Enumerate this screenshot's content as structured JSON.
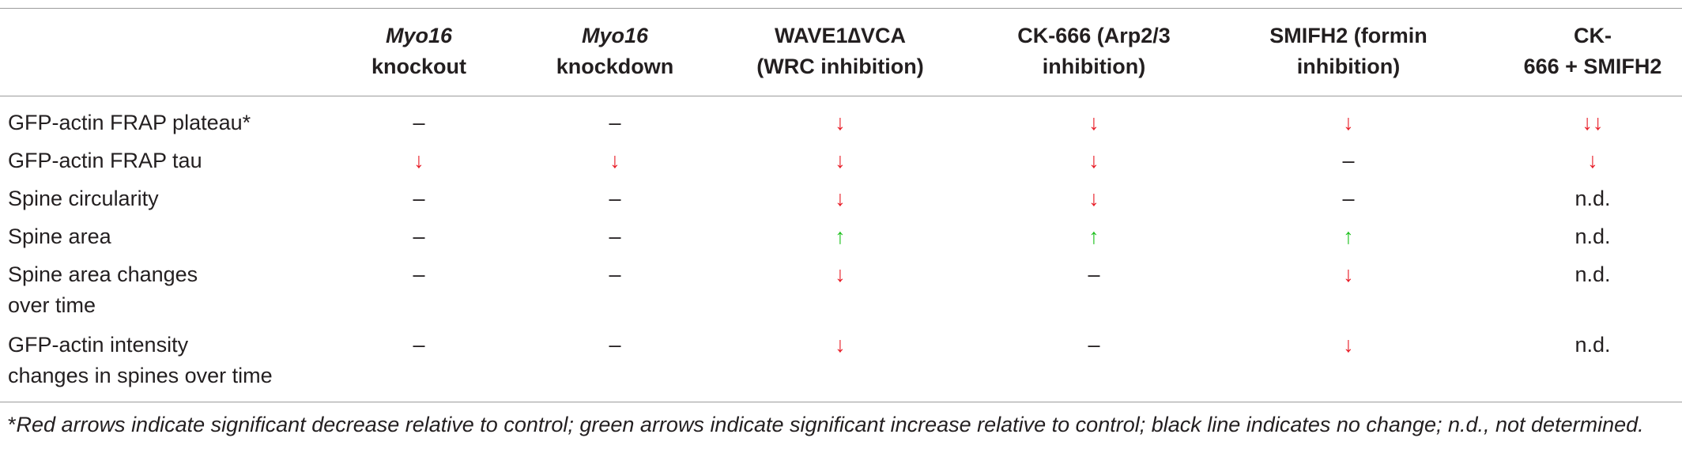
{
  "columns": [
    {
      "line1_italic": "Myo16",
      "line1_rest": "",
      "line2": "knockout"
    },
    {
      "line1_italic": "Myo16",
      "line1_rest": "",
      "line2": "knockdown"
    },
    {
      "line1_italic": "",
      "line1_rest": "WAVE1∆VCA",
      "line2": "(WRC inhibition)"
    },
    {
      "line1_italic": "",
      "line1_rest": "CK-666 (Arp2/3",
      "line2": "inhibition)"
    },
    {
      "line1_italic": "",
      "line1_rest": "SMIFH2 (formin",
      "line2": "inhibition)"
    },
    {
      "line1_italic": "",
      "line1_rest": "CK-",
      "line2": "666 + SMIFH2"
    }
  ],
  "rows": [
    {
      "label_line1": "GFP-actin FRAP plateau*",
      "label_line2": "",
      "cells": [
        "–",
        "–",
        "↓",
        "↓",
        "↓",
        "↓↓"
      ]
    },
    {
      "label_line1": "GFP-actin FRAP tau",
      "label_line2": "",
      "cells": [
        "↓",
        "↓",
        "↓",
        "↓",
        "–",
        "↓"
      ]
    },
    {
      "label_line1": "Spine circularity",
      "label_line2": "",
      "cells": [
        "–",
        "–",
        "↓",
        "↓",
        "–",
        "n.d."
      ]
    },
    {
      "label_line1": "Spine area",
      "label_line2": "",
      "cells": [
        "–",
        "–",
        "↑",
        "↑",
        "↑",
        "n.d."
      ]
    },
    {
      "label_line1": "Spine area changes",
      "label_line2": "over time",
      "cells": [
        "–",
        "–",
        "↓",
        "–",
        "↓",
        "n.d."
      ]
    },
    {
      "label_line1": "GFP-actin intensity",
      "label_line2": "changes in spines over time",
      "cells": [
        "–",
        "–",
        "↓",
        "–",
        "↓",
        "n.d."
      ]
    }
  ],
  "colors": {
    "decrease": "#e8202a",
    "increase": "#1fc11f",
    "neutral": "#231f20",
    "rule": "#9b9b9b"
  },
  "footnote": {
    "mark": "*",
    "text": "Red arrows indicate significant decrease relative to control; green arrows indicate significant increase relative to control; black line indicates no change; n.d., not determined."
  }
}
